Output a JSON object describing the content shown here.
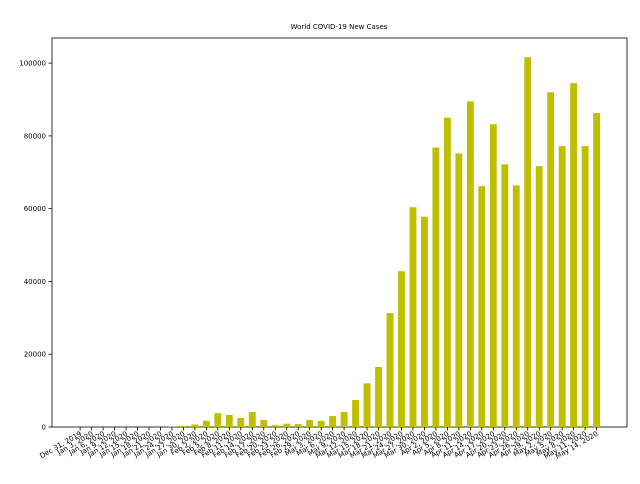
{
  "chart_data": {
    "type": "bar",
    "title": "World COVID-19 New Cases",
    "categories": [
      "Dec 31, 2019",
      "Jan 3, 2020",
      "Jan 6, 2020",
      "Jan 9, 2020",
      "Jan 12, 2020",
      "Jan 15, 2020",
      "Jan 18, 2020",
      "Jan 21, 2020",
      "Jan 24, 2020",
      "Jan 27, 2020",
      "Jan 30, 2020",
      "Feb 2, 2020",
      "Feb 5, 2020",
      "Feb 8, 2020",
      "Feb 11, 2020",
      "Feb 14, 2020",
      "Feb 17, 2020",
      "Feb 20, 2020",
      "Feb 23, 2020",
      "Feb 26, 2020",
      "Feb 29, 2020",
      "Mar 3, 2020",
      "Mar 6, 2020",
      "Mar 9, 2020",
      "Mar 12, 2020",
      "Mar 15, 2020",
      "Mar 18, 2020",
      "Mar 21, 2020",
      "Mar 24, 2020",
      "Mar 27, 2020",
      "Mar 30, 2020",
      "Apr 2, 2020",
      "Apr 5, 2020",
      "Apr 8, 2020",
      "Apr 11, 2020",
      "Apr 14, 2020",
      "Apr 17, 2020",
      "Apr 20, 2020",
      "Apr 23, 2020",
      "Apr 26, 2020",
      "Apr 29, 2020",
      "May 2, 2020",
      "May 5, 2020",
      "May 8, 2020",
      "May 11, 2020",
      "May 14, 2020"
    ],
    "values": [
      0,
      0,
      0,
      0,
      0,
      0,
      0,
      0,
      100,
      300,
      700,
      1700,
      3800,
      3300,
      2500,
      4100,
      1900,
      500,
      900,
      800,
      1900,
      1700,
      3000,
      4100,
      7400,
      12000,
      16500,
      31300,
      42800,
      60400,
      57800,
      76800,
      85000,
      75200,
      89500,
      66200,
      83200,
      72200,
      66400,
      101600,
      71700,
      92000,
      77200,
      94500,
      77200,
      86300
    ],
    "color": "#bfbf00",
    "ylim": [
      0,
      106900
    ],
    "yticks": [
      0,
      20000,
      40000,
      60000,
      80000,
      100000
    ]
  }
}
